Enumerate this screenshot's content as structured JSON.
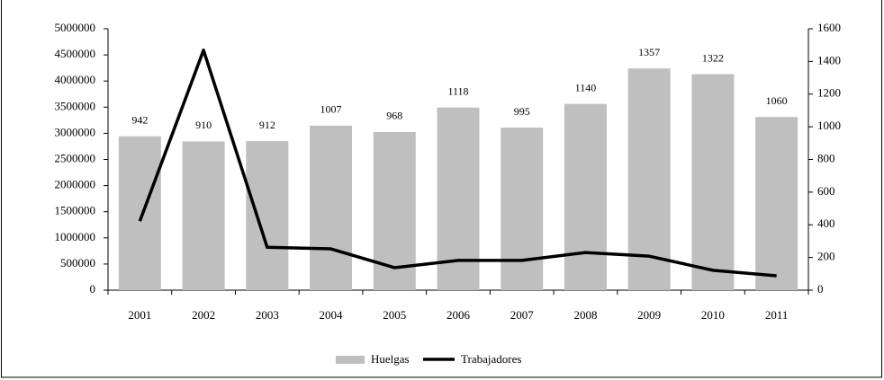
{
  "chart_data": {
    "type": "bar_line",
    "categories": [
      "2001",
      "2002",
      "2003",
      "2004",
      "2005",
      "2006",
      "2007",
      "2008",
      "2009",
      "2010",
      "2011"
    ],
    "series": [
      {
        "name": "Huelgas",
        "type": "bar",
        "axis": "y2",
        "color": "#bfbfbf",
        "values": [
          942,
          910,
          912,
          1007,
          968,
          1118,
          995,
          1140,
          1357,
          1322,
          1060
        ]
      },
      {
        "name": "Trabajadores",
        "type": "line",
        "axis": "y",
        "color": "#000000",
        "values": [
          1320000,
          4590000,
          820000,
          790000,
          430000,
          570000,
          570000,
          720000,
          650000,
          380000,
          275000
        ]
      }
    ],
    "ylim": [
      0,
      5000000
    ],
    "yticks": [
      0,
      500000,
      1000000,
      1500000,
      2000000,
      2500000,
      3000000,
      3500000,
      4000000,
      4500000,
      5000000
    ],
    "y2lim": [
      0,
      1600
    ],
    "y2ticks": [
      0,
      200,
      400,
      600,
      800,
      1000,
      1200,
      1400,
      1600
    ],
    "legend": "bottom",
    "grid": false
  }
}
